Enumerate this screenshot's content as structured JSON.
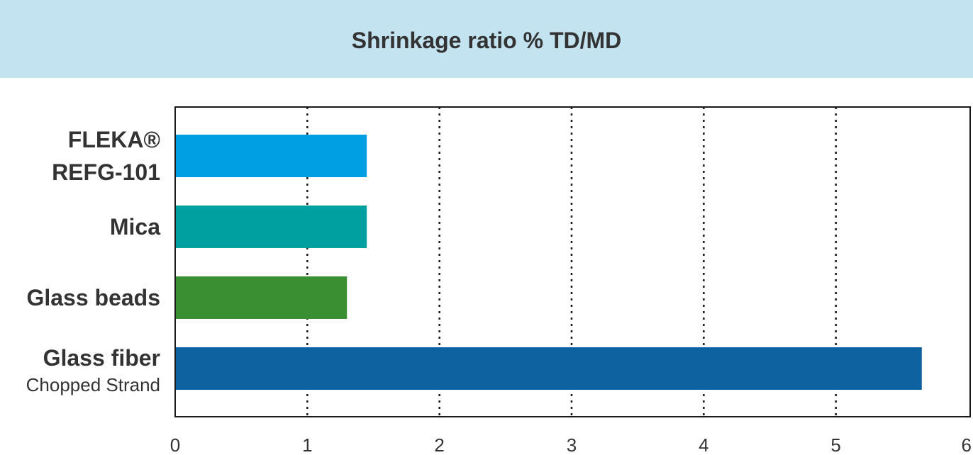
{
  "chart_data": {
    "type": "bar",
    "orientation": "horizontal",
    "title": "Shrinkage ratio % TD/MD",
    "categories": [
      {
        "lines": [
          "FLEKA®",
          "REFG-101"
        ],
        "sub": ""
      },
      {
        "lines": [
          "Mica"
        ],
        "sub": ""
      },
      {
        "lines": [
          "Glass beads"
        ],
        "sub": ""
      },
      {
        "lines": [
          "Glass fiber"
        ],
        "sub": "Chopped Strand"
      }
    ],
    "values": [
      1.45,
      1.45,
      1.3,
      5.65
    ],
    "colors": [
      "#009fe3",
      "#00a0a0",
      "#3a8f33",
      "#0e62a0"
    ],
    "xlim": [
      0,
      6
    ],
    "xticks": [
      "0",
      "1",
      "2",
      "3",
      "4",
      "5",
      "6"
    ],
    "grid": "vertical-dotted",
    "xlabel": "",
    "ylabel": ""
  }
}
